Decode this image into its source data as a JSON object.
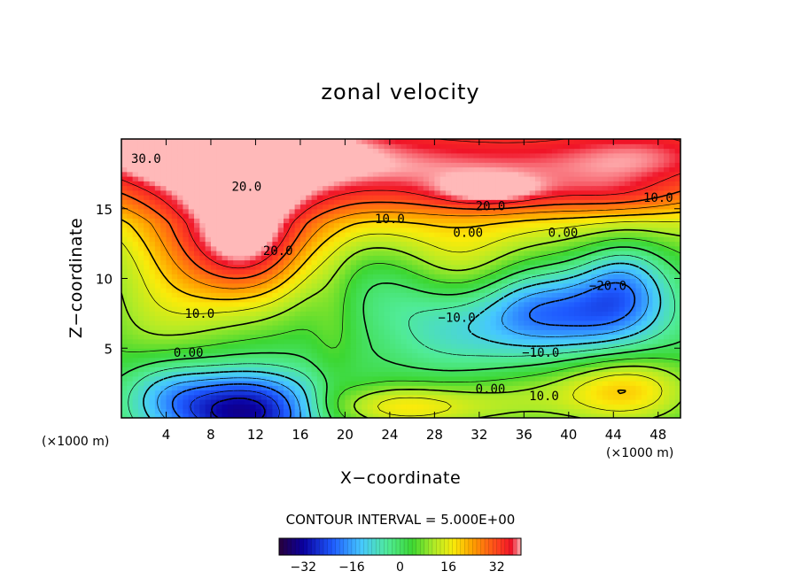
{
  "chart_data": {
    "type": "heatmap",
    "title": "zonal velocity",
    "xlabel": "X−coordinate",
    "ylabel": "Z−coordinate",
    "x_unit_left": "(×1000 m)",
    "x_unit_right": "(×1000 m)",
    "xlim": [
      0,
      50
    ],
    "ylim": [
      0,
      20
    ],
    "x_ticks": [
      4,
      8,
      12,
      16,
      20,
      24,
      28,
      32,
      36,
      40,
      44,
      48
    ],
    "x_tick_labels": [
      "4",
      "8",
      "12",
      "16",
      "20",
      "24",
      "28",
      "32",
      "36",
      "40",
      "44",
      "48"
    ],
    "y_ticks": [
      5,
      10,
      15
    ],
    "y_tick_labels": [
      "5",
      "10",
      "15"
    ],
    "contour_interval_text": "CONTOUR INTERVAL = 5.000E+00",
    "contour_interval": 5,
    "value_range": [
      -40,
      40
    ],
    "colorbar_ticks": [
      -32,
      -16,
      0,
      16,
      32
    ],
    "colorbar_tick_labels": [
      "−32",
      "−16",
      "0",
      "16",
      "32"
    ],
    "contour_labels": [
      {
        "text": "30.0",
        "x": 2.2,
        "z": 18.6
      },
      {
        "text": "20.0",
        "x": 11.2,
        "z": 16.6
      },
      {
        "text": "20.0",
        "x": 33.0,
        "z": 15.2
      },
      {
        "text": "10.0",
        "x": 24.0,
        "z": 14.3
      },
      {
        "text": "10.0",
        "x": 48.0,
        "z": 15.8
      },
      {
        "text": "0.00",
        "x": 31.0,
        "z": 13.3
      },
      {
        "text": "0.00",
        "x": 39.5,
        "z": 13.3
      },
      {
        "text": "20.0",
        "x": 14.0,
        "z": 12.0
      },
      {
        "text": "−20.0",
        "x": 43.5,
        "z": 9.5
      },
      {
        "text": "10.0",
        "x": 7.0,
        "z": 7.5
      },
      {
        "text": "−10.0",
        "x": 30.0,
        "z": 7.2
      },
      {
        "text": "0.00",
        "x": 6.0,
        "z": 4.7
      },
      {
        "text": "−10.0",
        "x": 37.5,
        "z": 4.7
      },
      {
        "text": "0.00",
        "x": 33.0,
        "z": 2.1
      },
      {
        "text": "10.0",
        "x": 37.8,
        "z": 1.6
      }
    ],
    "features": [
      {
        "x": 25,
        "z": 17,
        "u": 22,
        "rx": 40,
        "rz": 4
      },
      {
        "x": 10,
        "z": 19.5,
        "u": 16,
        "rx": 10,
        "rz": 2
      },
      {
        "x": 5,
        "z": 19,
        "u": 6,
        "rx": 8,
        "rz": 2
      },
      {
        "x": 47,
        "z": 19,
        "u": 6,
        "rx": 8,
        "rz": 2
      },
      {
        "x": 33,
        "z": 16.2,
        "u": 10,
        "rx": 5,
        "rz": 1.2
      },
      {
        "x": 44,
        "z": 16,
        "u": 6,
        "rx": 6,
        "rz": 1.5
      },
      {
        "x": 11,
        "z": 12.5,
        "u": 32,
        "rx": 6,
        "rz": 4.5
      },
      {
        "x": 4,
        "z": 11,
        "u": 8,
        "rx": 5,
        "rz": 6
      },
      {
        "x": 3,
        "z": 6,
        "u": 4,
        "rx": 6,
        "rz": 4
      },
      {
        "x": 11,
        "z": 0.5,
        "u": -36,
        "rx": 7,
        "rz": 2.8
      },
      {
        "x": 4,
        "z": 2,
        "u": -10,
        "rx": 4,
        "rz": 2.5
      },
      {
        "x": 24,
        "z": 9.5,
        "u": -6,
        "rx": 5,
        "rz": 3
      },
      {
        "x": 30,
        "z": 6.5,
        "u": -10,
        "rx": 6,
        "rz": 3
      },
      {
        "x": 30,
        "z": 11,
        "u": 8,
        "rx": 6,
        "rz": 3
      },
      {
        "x": 41.5,
        "z": 7.5,
        "u": -22,
        "rx": 7,
        "rz": 3
      },
      {
        "x": 45,
        "z": 10,
        "u": -14,
        "rx": 4,
        "rz": 3
      },
      {
        "x": 36,
        "z": 8,
        "u": -8,
        "rx": 4,
        "rz": 3
      },
      {
        "x": 25,
        "z": 0.8,
        "u": 16,
        "rx": 8,
        "rz": 1.6
      },
      {
        "x": 45,
        "z": 2,
        "u": 18,
        "rx": 6,
        "rz": 2.5
      },
      {
        "x": 36,
        "z": 1.5,
        "u": 6,
        "rx": 6,
        "rz": 2
      },
      {
        "x": 19,
        "z": 6,
        "u": 4,
        "rx": 2,
        "rz": 6
      }
    ],
    "base_profile": [
      {
        "z": 0,
        "u": 2
      },
      {
        "z": 5,
        "u": 2
      },
      {
        "z": 10,
        "u": 4
      },
      {
        "z": 14,
        "u": 6
      },
      {
        "z": 16,
        "u": 12
      },
      {
        "z": 18,
        "u": 18
      },
      {
        "z": 20,
        "u": 22
      }
    ],
    "grid": false
  }
}
